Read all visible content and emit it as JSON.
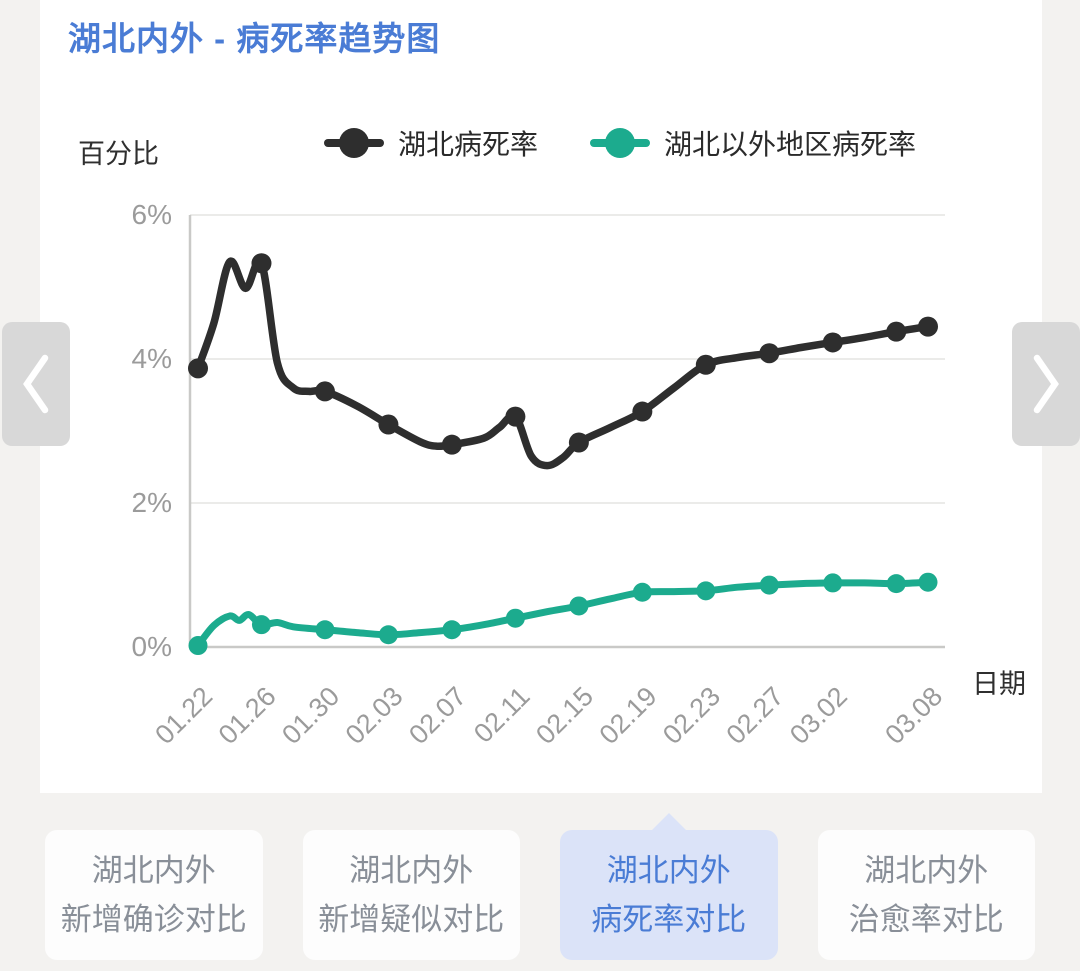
{
  "page": {
    "title": "湖北内外 - 病死率趋势图",
    "accent_blue": "#4a7cd5",
    "background": "#f3f2f0"
  },
  "carousel": {
    "prev_icon": "chevron-left-icon",
    "next_icon": "chevron-right-icon"
  },
  "chart_data": {
    "type": "line",
    "title": "湖北内外 - 病死率趋势图",
    "ylabel": "百分比",
    "xlabel": "日期",
    "ylim": [
      0,
      6
    ],
    "grid": true,
    "legend_position": "top",
    "yticks": [
      {
        "value": 0,
        "label": "0%"
      },
      {
        "value": 2,
        "label": "2%"
      },
      {
        "value": 4,
        "label": "4%"
      },
      {
        "value": 6,
        "label": "6%"
      }
    ],
    "x_total_days": 46,
    "xticks": [
      {
        "day": 0,
        "label": "01.22"
      },
      {
        "day": 4,
        "label": "01.26"
      },
      {
        "day": 8,
        "label": "01.30"
      },
      {
        "day": 12,
        "label": "02.03"
      },
      {
        "day": 16,
        "label": "02.07"
      },
      {
        "day": 20,
        "label": "02.11"
      },
      {
        "day": 24,
        "label": "02.15"
      },
      {
        "day": 28,
        "label": "02.19"
      },
      {
        "day": 32,
        "label": "02.23"
      },
      {
        "day": 36,
        "label": "02.27"
      },
      {
        "day": 40,
        "label": "03.02"
      },
      {
        "day": 46,
        "label": "03.08"
      }
    ],
    "series": [
      {
        "name": "湖北病死率",
        "color": "#2e2e2e",
        "unit": "%",
        "points": [
          [
            0,
            3.87
          ],
          [
            1,
            4.5
          ],
          [
            2,
            5.35
          ],
          [
            3,
            4.98
          ],
          [
            4,
            5.33
          ],
          [
            5,
            3.95
          ],
          [
            6,
            3.6
          ],
          [
            7,
            3.55
          ],
          [
            8,
            3.55
          ],
          [
            10,
            3.35
          ],
          [
            12,
            3.09
          ],
          [
            14,
            2.85
          ],
          [
            15,
            2.79
          ],
          [
            16,
            2.81
          ],
          [
            18,
            2.9
          ],
          [
            19,
            3.05
          ],
          [
            20,
            3.2
          ],
          [
            21,
            2.65
          ],
          [
            22,
            2.52
          ],
          [
            23,
            2.63
          ],
          [
            24,
            2.84
          ],
          [
            26,
            3.05
          ],
          [
            28,
            3.27
          ],
          [
            30,
            3.6
          ],
          [
            32,
            3.92
          ],
          [
            34,
            4.02
          ],
          [
            36,
            4.08
          ],
          [
            38,
            4.16
          ],
          [
            40,
            4.23
          ],
          [
            42,
            4.3
          ],
          [
            44,
            4.38
          ],
          [
            46,
            4.45
          ]
        ],
        "marker_days": [
          0,
          4,
          8,
          12,
          16,
          20,
          24,
          28,
          32,
          36,
          40,
          44,
          46
        ]
      },
      {
        "name": "湖北以外地区病死率",
        "color": "#1cab8e",
        "unit": "%",
        "points": [
          [
            0,
            0.02
          ],
          [
            1,
            0.3
          ],
          [
            2,
            0.43
          ],
          [
            2.6,
            0.37
          ],
          [
            3.2,
            0.45
          ],
          [
            4,
            0.31
          ],
          [
            5,
            0.34
          ],
          [
            6,
            0.28
          ],
          [
            8,
            0.24
          ],
          [
            10,
            0.2
          ],
          [
            12,
            0.17
          ],
          [
            14,
            0.2
          ],
          [
            16,
            0.24
          ],
          [
            18,
            0.31
          ],
          [
            20,
            0.4
          ],
          [
            22,
            0.49
          ],
          [
            24,
            0.57
          ],
          [
            26,
            0.67
          ],
          [
            28,
            0.76
          ],
          [
            30,
            0.77
          ],
          [
            32,
            0.78
          ],
          [
            34,
            0.83
          ],
          [
            36,
            0.86
          ],
          [
            38,
            0.88
          ],
          [
            40,
            0.89
          ],
          [
            42,
            0.89
          ],
          [
            44,
            0.88
          ],
          [
            46,
            0.9
          ]
        ],
        "marker_days": [
          0,
          4,
          8,
          12,
          16,
          20,
          24,
          28,
          32,
          36,
          40,
          44,
          46
        ]
      }
    ]
  },
  "tabs": [
    {
      "line1": "湖北内外",
      "line2": "新增确诊对比",
      "selected": false
    },
    {
      "line1": "湖北内外",
      "line2": "新增疑似对比",
      "selected": false
    },
    {
      "line1": "湖北内外",
      "line2": "病死率对比",
      "selected": true
    },
    {
      "line1": "湖北内外",
      "line2": "治愈率对比",
      "selected": false
    }
  ]
}
